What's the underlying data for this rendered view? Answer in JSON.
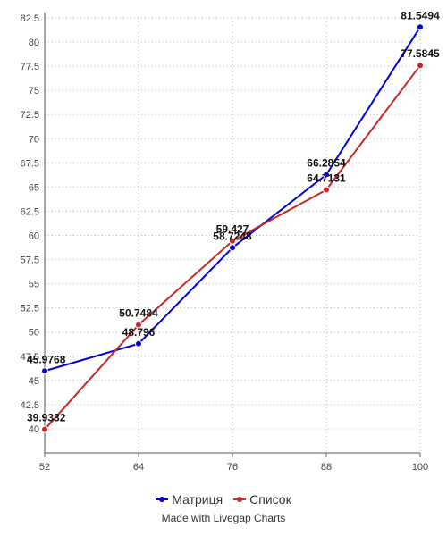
{
  "chart_data": {
    "type": "line",
    "x": [
      52,
      64,
      76,
      88,
      100
    ],
    "xlim": [
      52,
      100
    ],
    "ylim": [
      37.5,
      82.5
    ],
    "y_ticks": [
      40,
      42.5,
      45,
      47.5,
      50,
      52.5,
      55,
      57.5,
      60,
      62.5,
      65,
      67.5,
      70,
      72.5,
      75,
      77.5,
      80,
      82.5
    ],
    "y_tick_labels": [
      "40",
      "42.5",
      "45",
      "47.5",
      "50",
      "52.5",
      "55",
      "57.5",
      "60",
      "62.5",
      "65",
      "67.5",
      "70",
      "72.5",
      "75",
      "77.5",
      "80",
      "82.5"
    ],
    "x_tick_labels": [
      "52",
      "64",
      "76",
      "88",
      "100"
    ],
    "grid": true,
    "legend_position": "bottom",
    "series": [
      {
        "name": "Матриця",
        "color": "#0000dd",
        "values": [
          45.9768,
          48.796,
          58.7248,
          66.2854,
          81.5494
        ],
        "labels": [
          "45.9768",
          "48.796",
          "58.7248",
          "66.2854",
          "81.5494"
        ]
      },
      {
        "name": "Список",
        "color": "#c62828",
        "values": [
          39.9332,
          50.7484,
          59.427,
          64.7131,
          77.5845
        ],
        "labels": [
          "39.9332",
          "50.7484",
          "59.427",
          "64.7131",
          "77.5845"
        ]
      }
    ]
  },
  "legend": {
    "items": [
      {
        "label": "Матриця",
        "color": "#0000dd"
      },
      {
        "label": "Список",
        "color": "#c62828"
      }
    ]
  },
  "credit": "Made with Livegap Charts"
}
